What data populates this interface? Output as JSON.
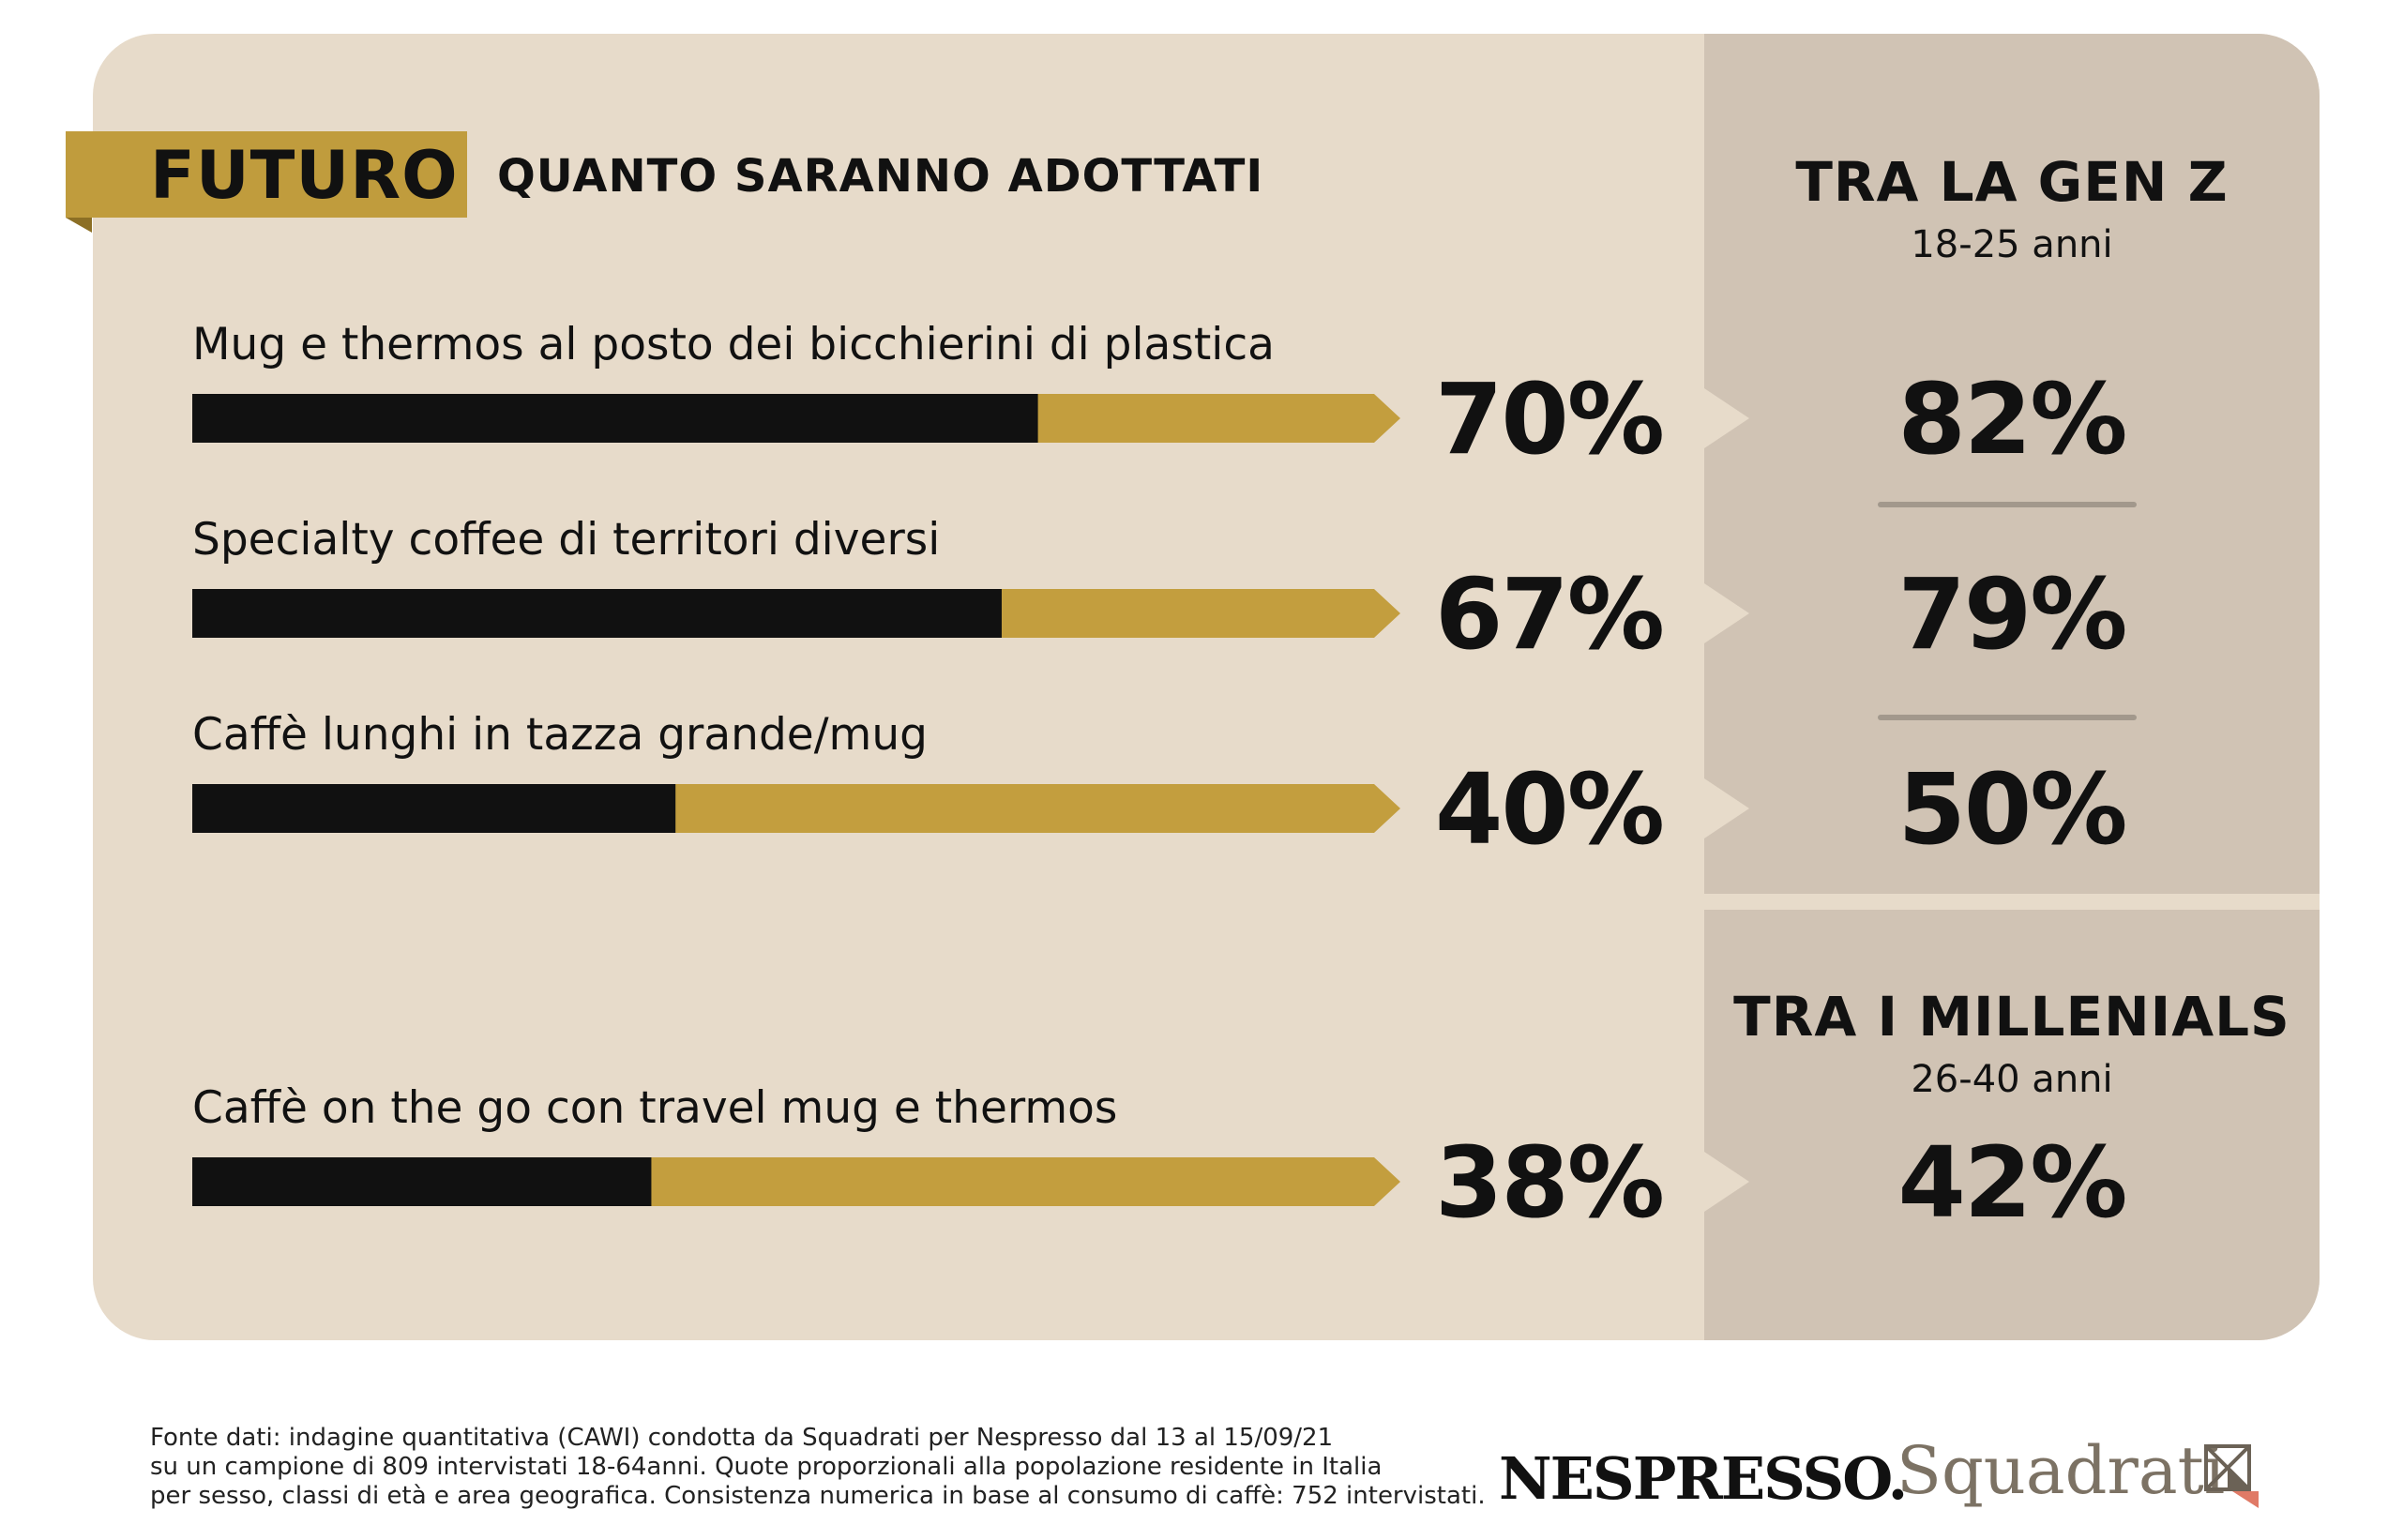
{
  "header": {
    "badge": "FUTURO",
    "subtitle": "QUANTO SARANNO ADOTTATI"
  },
  "side": {
    "genz_title": "TRA LA GEN Z",
    "genz_ages": "18-25 anni",
    "mill_title": "TRA I MILLENIALS",
    "mill_ages": "26-40 anni"
  },
  "colors": {
    "background": "#e7dbca",
    "side_panel": "#d0c3b4",
    "bar_fill": "#111111",
    "bar_track": "#c39e3e",
    "badge": "#c09c3d"
  },
  "chart_data": {
    "type": "bar",
    "orientation": "horizontal",
    "categories": [
      "Mug e thermos al posto dei bicchierini di plastica",
      "Specialty coffee di territori diversi",
      "Caffè lunghi in tazza grande/mug",
      "Caffè on the go con travel mug e thermos"
    ],
    "values": [
      70,
      67,
      40,
      38
    ],
    "value_labels": [
      "70%",
      "67%",
      "40%",
      "38%"
    ],
    "xlim": [
      0,
      100
    ],
    "comparison": [
      {
        "group": "TRA LA GEN Z",
        "values": [
          82,
          79,
          50
        ],
        "labels": [
          "82%",
          "79%",
          "50%"
        ]
      },
      {
        "group": "TRA I MILLENIALS",
        "values": [
          42
        ],
        "labels": [
          "42%"
        ]
      }
    ]
  },
  "footer": {
    "source_line1": "Fonte dati: indagine quantitativa (CAWI) condotta da Squadrati per Nespresso dal 13 al 15/09/21",
    "source_line2": "su un campione di 809 intervistati 18-64anni. Quote proporzionali alla popolazione residente in Italia",
    "source_line3": "per sesso, classi di età e area geografica. Consistenza numerica in base al consumo di caffè: 752 intervistati.",
    "logo_nespresso": "NESPRESSO.",
    "logo_squadrati": "Squadrati"
  }
}
